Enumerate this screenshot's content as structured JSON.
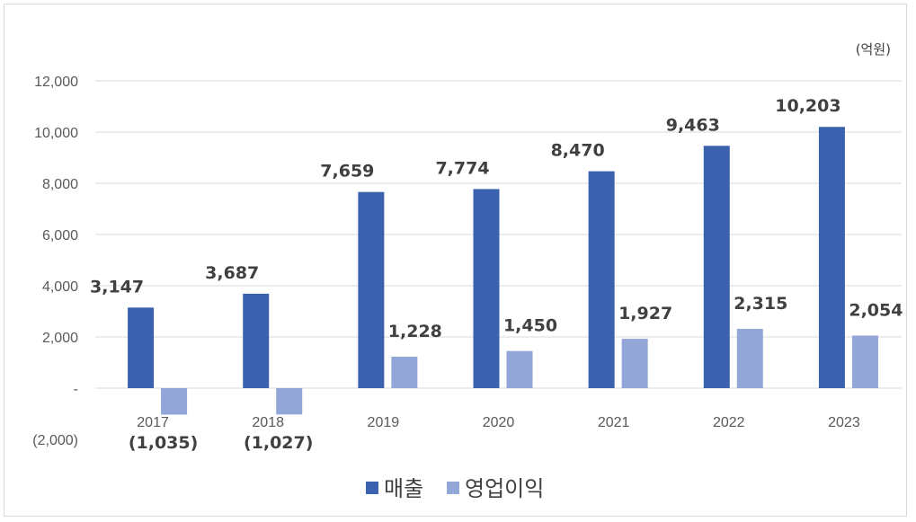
{
  "chart_data": {
    "type": "bar",
    "unit_label": "(억원)",
    "categories": [
      "2017",
      "2018",
      "2019",
      "2020",
      "2021",
      "2022",
      "2023"
    ],
    "series": [
      {
        "name": "매출",
        "color": "#3a62af",
        "values": [
          3147,
          3687,
          7659,
          7774,
          8470,
          9463,
          10203
        ],
        "labels": [
          "3,147",
          "3,687",
          "7,659",
          "7,774",
          "8,470",
          "9,463",
          "10,203"
        ]
      },
      {
        "name": "영업이익",
        "color": "#93a6d8",
        "values": [
          -1035,
          -1027,
          1228,
          1450,
          1927,
          2315,
          2054
        ],
        "labels": [
          "(1,035)",
          "(1,027)",
          "1,228",
          "1,450",
          "1,927",
          "2,315",
          "2,054"
        ]
      }
    ],
    "ylim": [
      -2000,
      12000
    ],
    "yticks": [
      -2000,
      0,
      2000,
      4000,
      6000,
      8000,
      10000,
      12000
    ],
    "ytick_labels": [
      "(2,000)",
      "-",
      "2,000",
      "4,000",
      "6,000",
      "8,000",
      "10,000",
      "12,000"
    ],
    "grid": true,
    "legend_position": "bottom"
  }
}
